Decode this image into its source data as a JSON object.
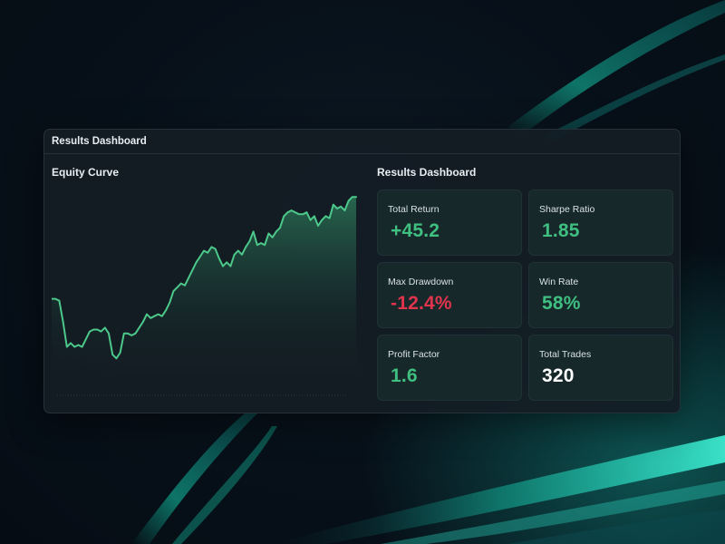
{
  "window": {
    "title": "Results Dashboard"
  },
  "equity_section": {
    "title": "Equity Curve"
  },
  "metrics_section": {
    "title": "Results Dashboard",
    "cards": [
      {
        "label": "Total Return",
        "value": "+45.2",
        "tone": "positive"
      },
      {
        "label": "Sharpe Ratio",
        "value": "1.85",
        "tone": "positive"
      },
      {
        "label": "Max Drawdown",
        "value": "-12.4%",
        "tone": "negative"
      },
      {
        "label": "Win Rate",
        "value": "58%",
        "tone": "positive"
      },
      {
        "label": "Profit Factor",
        "value": "1.6",
        "tone": "positive"
      },
      {
        "label": "Total Trades",
        "value": "320",
        "tone": "neutral"
      }
    ]
  },
  "colors": {
    "positive": "#3fbf80",
    "negative": "#e0344c",
    "neutral": "#ffffff",
    "line": "#4cc98a",
    "background": "#06101a",
    "panel": "#141d24",
    "card": "#17282b"
  },
  "chart_data": {
    "type": "area",
    "title": "Equity Curve",
    "xlabel": "",
    "ylabel": "",
    "grid": false,
    "legend": "none",
    "ylim": [
      0,
      100
    ],
    "values": [
      45,
      45,
      44,
      33,
      20,
      22,
      20,
      21,
      20,
      24,
      28,
      29,
      29,
      28,
      30,
      27,
      16,
      14,
      17,
      27,
      27,
      26,
      27,
      30,
      33,
      37,
      35,
      36,
      37,
      36,
      39,
      43,
      49,
      51,
      53,
      52,
      56,
      60,
      64,
      67,
      70,
      69,
      72,
      71,
      66,
      62,
      64,
      62,
      68,
      70,
      68,
      72,
      75,
      80,
      73,
      74,
      73,
      79,
      77,
      80,
      82,
      88,
      90,
      91,
      90,
      89,
      89,
      90,
      86,
      88,
      83,
      86,
      88,
      87,
      94,
      92,
      93,
      91,
      96,
      98,
      98
    ]
  }
}
